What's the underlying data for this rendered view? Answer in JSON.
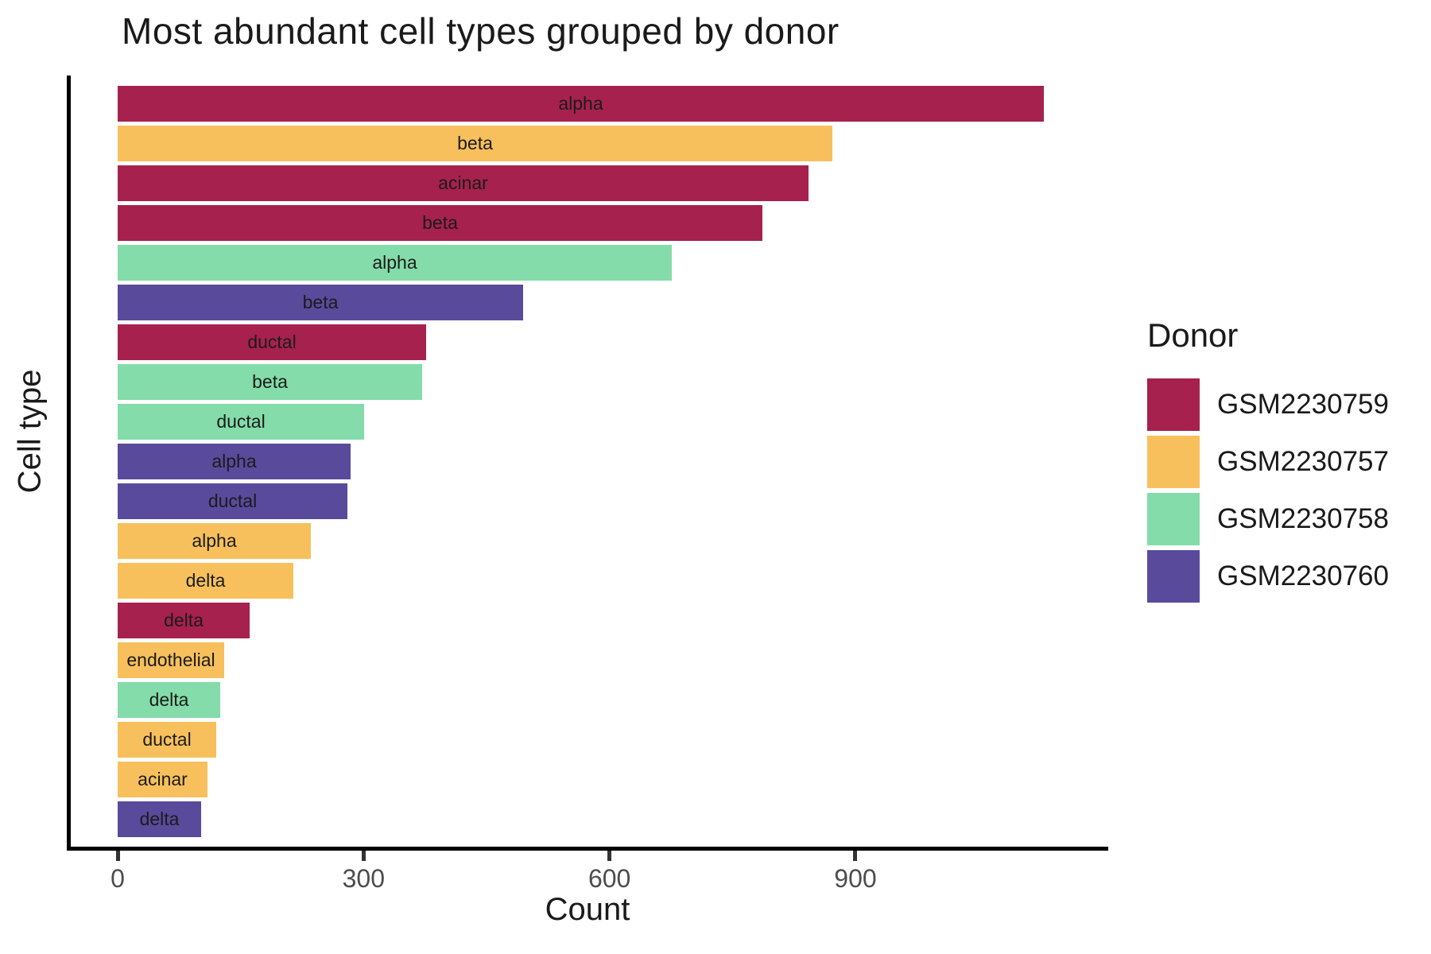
{
  "chart_data": {
    "type": "bar",
    "orientation": "horizontal",
    "title": "Most abundant cell types grouped by donor",
    "xlabel": "Count",
    "ylabel": "Cell type",
    "xlim": [
      0,
      1205
    ],
    "x_ticks": [
      0,
      300,
      600,
      900
    ],
    "grid": false,
    "legend_title": "Donor",
    "legend_position": "right",
    "donors": [
      {
        "name": "GSM2230759",
        "color": "#A6214D"
      },
      {
        "name": "GSM2230757",
        "color": "#F7C05C"
      },
      {
        "name": "GSM2230758",
        "color": "#83DCA9"
      },
      {
        "name": "GSM2230760",
        "color": "#5A4A9B"
      }
    ],
    "bars": [
      {
        "cell_type": "alpha",
        "donor": "GSM2230759",
        "count": 1130
      },
      {
        "cell_type": "beta",
        "donor": "GSM2230757",
        "count": 872
      },
      {
        "cell_type": "acinar",
        "donor": "GSM2230759",
        "count": 843
      },
      {
        "cell_type": "beta",
        "donor": "GSM2230759",
        "count": 787
      },
      {
        "cell_type": "alpha",
        "donor": "GSM2230758",
        "count": 676
      },
      {
        "cell_type": "beta",
        "donor": "GSM2230760",
        "count": 495
      },
      {
        "cell_type": "ductal",
        "donor": "GSM2230759",
        "count": 376
      },
      {
        "cell_type": "beta",
        "donor": "GSM2230758",
        "count": 371
      },
      {
        "cell_type": "ductal",
        "donor": "GSM2230758",
        "count": 301
      },
      {
        "cell_type": "alpha",
        "donor": "GSM2230760",
        "count": 284
      },
      {
        "cell_type": "ductal",
        "donor": "GSM2230760",
        "count": 280
      },
      {
        "cell_type": "alpha",
        "donor": "GSM2230757",
        "count": 236
      },
      {
        "cell_type": "delta",
        "donor": "GSM2230757",
        "count": 214
      },
      {
        "cell_type": "delta",
        "donor": "GSM2230759",
        "count": 161
      },
      {
        "cell_type": "endothelial",
        "donor": "GSM2230757",
        "count": 130
      },
      {
        "cell_type": "delta",
        "donor": "GSM2230758",
        "count": 125
      },
      {
        "cell_type": "ductal",
        "donor": "GSM2230757",
        "count": 120
      },
      {
        "cell_type": "acinar",
        "donor": "GSM2230757",
        "count": 110
      },
      {
        "cell_type": "delta",
        "donor": "GSM2230760",
        "count": 102
      }
    ]
  }
}
